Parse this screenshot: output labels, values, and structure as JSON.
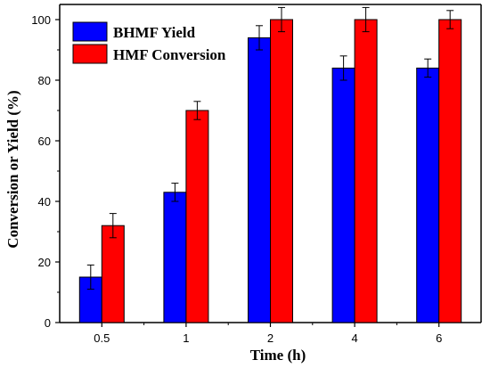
{
  "chart_data": {
    "type": "bar",
    "categories": [
      "0.5",
      "1",
      "2",
      "4",
      "6"
    ],
    "series": [
      {
        "name": "BHMF Yield",
        "color": "#0000ff",
        "values": [
          15,
          43,
          94,
          84,
          84
        ],
        "errors": [
          4,
          3,
          4,
          4,
          3
        ]
      },
      {
        "name": "HMF Conversion",
        "color": "#ff0000",
        "values": [
          32,
          70,
          100,
          100,
          100
        ],
        "errors": [
          4,
          3,
          4,
          4,
          3
        ]
      }
    ],
    "xlabel": "Time (h)",
    "ylabel": "Conversion or Yield (%)",
    "ylim": [
      0,
      105
    ],
    "yticks": [
      0,
      20,
      40,
      60,
      80,
      100
    ],
    "grid": false,
    "legend_position": "top-left"
  }
}
